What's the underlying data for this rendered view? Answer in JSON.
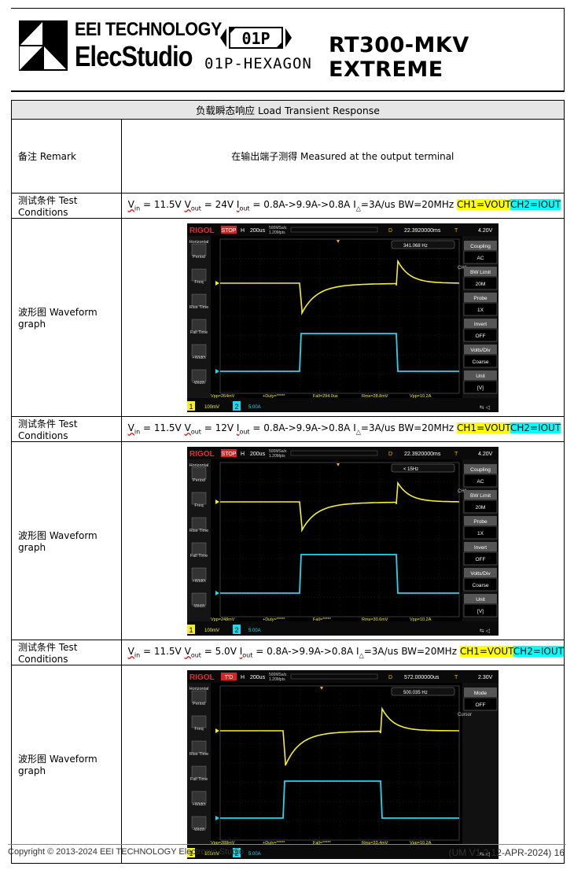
{
  "header": {
    "brand_line1": "EEI TECHNOLOGY",
    "brand_line2": "ElecStudio",
    "hex_badge": "01P",
    "hex_name": "01P-HEXAGON",
    "model": "RT300-MKV EXTREME"
  },
  "section_title": "负载瞬态响应 Load Transient Response",
  "remark": {
    "label": "备注  Remark",
    "value": "在输出端子测得  Measured at the output terminal"
  },
  "tests": [
    {
      "label": "测试条件 Test Conditions",
      "vin": "11.5V",
      "vout": "24V",
      "iout": "0.8A->9.9A->0.8A",
      "slew": "=3A/us BW=20MHz",
      "ch1": "CH1=VOUT",
      "ch2": "CH2=IOUT",
      "graph_label": "波形图  Waveform graph",
      "scope": {
        "run_state": "STOP",
        "timebase": "200us",
        "sample_rate": "500MSa/s",
        "mem_depth": "1.20Mpts",
        "delay": "22.3920000ms",
        "trig_level": "4.20V",
        "freq": "341.068 Hz",
        "menu_title": "CH1",
        "menu": [
          "Coupling",
          "AC",
          "BW Limit",
          "20M",
          "Probe",
          "1X",
          "Invert",
          "OFF",
          "Volts/Div",
          "Coarse",
          "Unit",
          "[V]"
        ],
        "meas": [
          "Vpp=264mV",
          "+Duty=*****",
          "Fall=294.0us",
          "Rms=28.8mV",
          "Vpp=10.2A"
        ],
        "ch1_scale": "100mV",
        "ch2_scale": "5.00A",
        "left_menu": [
          "Horizontal",
          "Period",
          "Freq",
          "Rise Time",
          "Fall Time",
          "+Width",
          "-Width"
        ]
      }
    },
    {
      "label": "测试条件 Test Conditions",
      "vin": "11.5V",
      "vout": "12V",
      "iout": "0.8A->9.9A->0.8A",
      "slew": "=3A/us BW=20MHz",
      "ch1": "CH1=VOUT",
      "ch2": "CH2=IOUT",
      "graph_label": "波形图  Waveform graph",
      "scope": {
        "run_state": "STOP",
        "timebase": "200us",
        "sample_rate": "500MSa/s",
        "mem_depth": "1.20Mpts",
        "delay": "22.3920000ms",
        "trig_level": "4.20V",
        "freq": "< 15Hz",
        "menu_title": "CH1",
        "menu": [
          "Coupling",
          "AC",
          "BW Limit",
          "20M",
          "Probe",
          "1X",
          "Invert",
          "OFF",
          "Volts/Div",
          "Coarse",
          "Unit",
          "[V]"
        ],
        "meas": [
          "Vpp=248mV",
          "+Duty=*****",
          "Fall=*****",
          "Rms=30.6mV",
          "Vpp=10.2A"
        ],
        "ch1_scale": "100mV",
        "ch2_scale": "5.00A",
        "left_menu": [
          "Horizontal",
          "Period",
          "Freq",
          "Rise Time",
          "Fall Time",
          "+Width",
          "-Width"
        ]
      }
    },
    {
      "label": "测试条件 Test Conditions",
      "vin": "11.5V",
      "vout": "5.0V",
      "iout": "0.8A->9.9A->0.8A",
      "slew": "=3A/us BW=20MHz",
      "ch1": "CH1=VOUT",
      "ch2": "CH2=IOUT",
      "graph_label": "波形图  Waveform graph",
      "scope": {
        "run_state": "T'D",
        "timebase": "200us",
        "sample_rate": "500MSa/s",
        "mem_depth": "1.20Mpts",
        "delay": "572.000000us",
        "trig_level": "2.30V",
        "freq": "500.035 Hz",
        "menu_title": "Cursor",
        "menu": [
          "Mode",
          "OFF"
        ],
        "meas": [
          "Vpp=288mV",
          "+Duty=*****",
          "Fall=*****",
          "Rms=33.4mV",
          "Vpp=10.2A"
        ],
        "ch1_scale": "100mV",
        "ch2_scale": "5.00A",
        "left_menu": [
          "Horizontal",
          "Period",
          "Freq",
          "Rise Time",
          "Fall Time",
          "+Width",
          "-Width"
        ]
      }
    }
  ],
  "footer": {
    "copyright": "Copyright © 2013-2024 EEI TECHNOLOGY Electronic Studio",
    "version": "(UM V1.2 12-APR-2024)",
    "page": "16"
  }
}
